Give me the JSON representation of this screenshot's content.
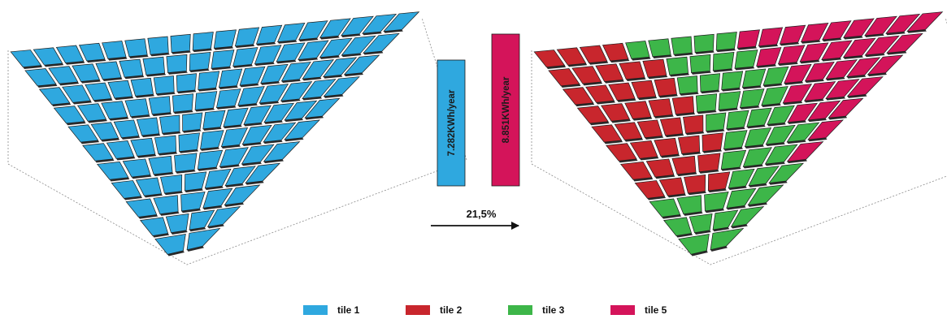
{
  "colors": {
    "tile1": "#2fa8df",
    "tile2": "#c8262d",
    "tile3": "#3db649",
    "tile5": "#d4145a",
    "gap": "#2b2b2b",
    "outline": "#8a8a8a"
  },
  "left_array": {
    "tile": "tile1"
  },
  "right_array": {
    "zones": [
      "tile2",
      "tile3",
      "tile5"
    ]
  },
  "bars": [
    {
      "value": 7.282,
      "label": "7.282KWh/year",
      "tile": "tile1"
    },
    {
      "value": 8.851,
      "label": "8.851KWh/year",
      "tile": "tile5"
    }
  ],
  "improvement": {
    "label": "21,5%"
  },
  "legend": [
    {
      "label": "tile 1",
      "tile": "tile1"
    },
    {
      "label": "tile 2",
      "tile": "tile2"
    },
    {
      "label": "tile 3",
      "tile": "tile3"
    },
    {
      "label": "tile 5",
      "tile": "tile5"
    }
  ]
}
